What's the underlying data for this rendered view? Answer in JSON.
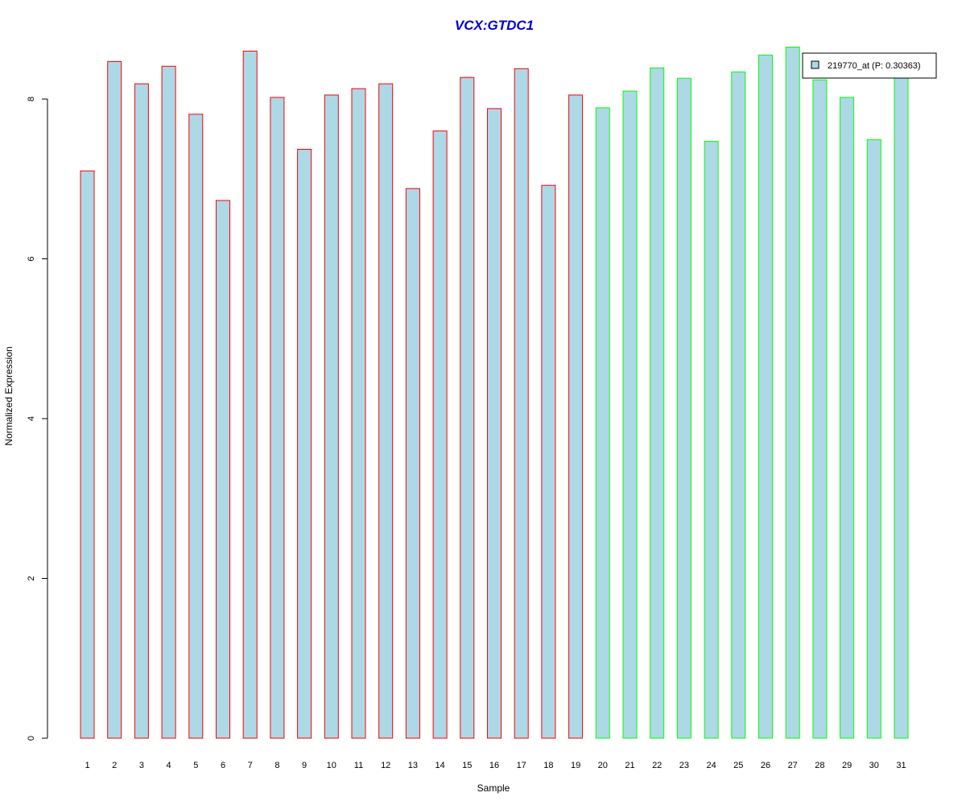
{
  "chart_data": {
    "type": "bar",
    "title": "VCX:GTDC1",
    "xlabel": "Sample",
    "ylabel": "Normalized Expression",
    "categories": [
      "1",
      "2",
      "3",
      "4",
      "5",
      "6",
      "7",
      "8",
      "9",
      "10",
      "11",
      "12",
      "13",
      "14",
      "15",
      "16",
      "17",
      "18",
      "19",
      "20",
      "21",
      "22",
      "23",
      "24",
      "25",
      "26",
      "27",
      "28",
      "29",
      "30",
      "31"
    ],
    "series": [
      {
        "name": "219770_at (P: 0.30363)",
        "values": [
          7.1,
          8.47,
          8.19,
          8.41,
          7.81,
          6.73,
          8.6,
          8.02,
          7.37,
          8.05,
          8.13,
          8.19,
          6.88,
          7.6,
          8.27,
          7.88,
          8.38,
          6.92,
          8.05,
          7.89,
          8.1,
          8.39,
          8.26,
          7.47,
          8.34,
          8.55,
          8.65,
          8.24,
          8.02,
          7.49,
          8.3
        ]
      }
    ],
    "group_border": [
      "red",
      "red",
      "red",
      "red",
      "red",
      "red",
      "red",
      "red",
      "red",
      "red",
      "red",
      "red",
      "red",
      "red",
      "red",
      "red",
      "red",
      "red",
      "red",
      "green",
      "green",
      "green",
      "green",
      "green",
      "green",
      "green",
      "green",
      "green",
      "green",
      "green",
      "green"
    ],
    "ylim": [
      0,
      8.7
    ],
    "yticks": [
      0,
      2,
      4,
      6,
      8
    ],
    "grid": false,
    "legend_position": "top-right",
    "colors": {
      "title": "#0000CD",
      "bar_fill": "#ADD8E6",
      "border_red": "#FF0000",
      "border_green": "#00FF00",
      "axis": "#000000"
    }
  }
}
